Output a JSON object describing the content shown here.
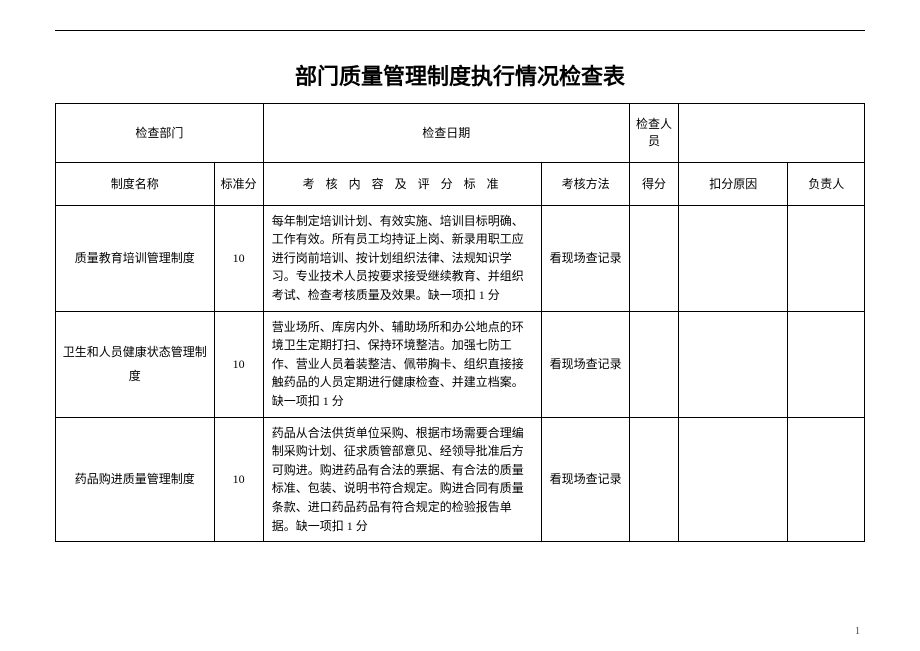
{
  "title": "部门质量管理制度执行情况检查表",
  "header_row": {
    "dept_label": "检查部门",
    "date_label": "检查日期",
    "inspector_label": "检查人员"
  },
  "columns": {
    "name": "制度名称",
    "std_score": "标准分",
    "criteria": "考 核 内 容 及 评 分 标 准",
    "method": "考核方法",
    "got_score": "得分",
    "reason": "扣分原因",
    "responsible": "负责人"
  },
  "rows": [
    {
      "name": "质量教育培训管理制度",
      "std_score": "10",
      "criteria": "每年制定培训计划、有效实施、培训目标明确、工作有效。所有员工均持证上岗、新录用职工应进行岗前培训、按计划组织法律、法规知识学习。专业技术人员按要求接受继续教育、并组织考试、检查考核质量及效果。缺一项扣 1 分",
      "method": "看现场查记录",
      "got_score": "",
      "reason": "",
      "responsible": ""
    },
    {
      "name": "卫生和人员健康状态管理制度",
      "std_score": "10",
      "criteria": "营业场所、库房内外、辅助场所和办公地点的环境卫生定期打扫、保持环境整洁。加强七防工作、营业人员着装整洁、佩带胸卡、组织直接接触药品的人员定期进行健康检查、并建立档案。缺一项扣 1 分",
      "method": "看现场查记录",
      "got_score": "",
      "reason": "",
      "responsible": ""
    },
    {
      "name": "药品购进质量管理制度",
      "std_score": "10",
      "criteria": "药品从合法供货单位采购、根据市场需要合理编制采购计划、征求质管部意见、经领导批准后方可购进。购进药品有合法的票据、有合法的质量标准、包装、说明书符合规定。购进合同有质量条款、进口药品药品有符合规定的检验报告单据。缺一项扣 1 分",
      "method": "看现场查记录",
      "got_score": "",
      "reason": "",
      "responsible": ""
    }
  ],
  "page_number": "1"
}
